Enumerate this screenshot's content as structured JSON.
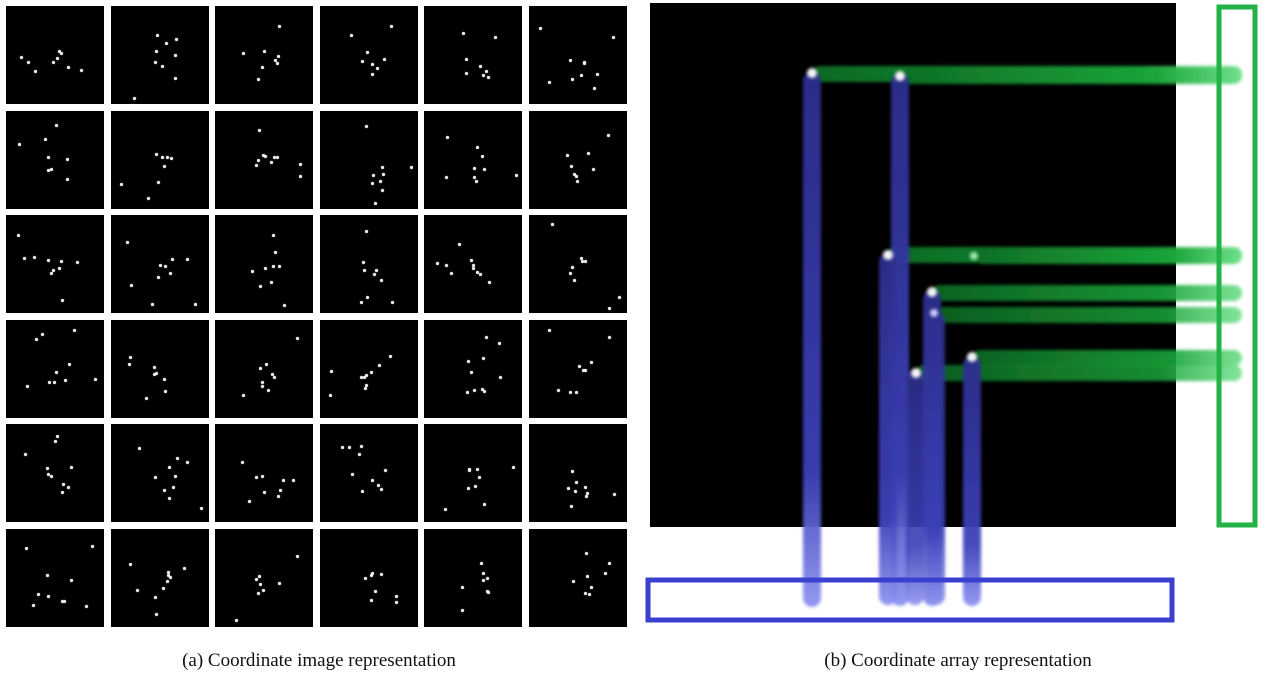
{
  "captions": {
    "a": "(a) Coordinate image representation",
    "b": "(b) Coordinate array representation"
  },
  "colors": {
    "background": "#000000",
    "point": "#f2f2f2",
    "x_projection": "#3a3fb0",
    "y_projection": "#1faa3f",
    "x_array_box": "#3a3fd0",
    "y_array_box": "#22b245"
  },
  "grid": {
    "rows": 6,
    "cols": 6
  }
}
